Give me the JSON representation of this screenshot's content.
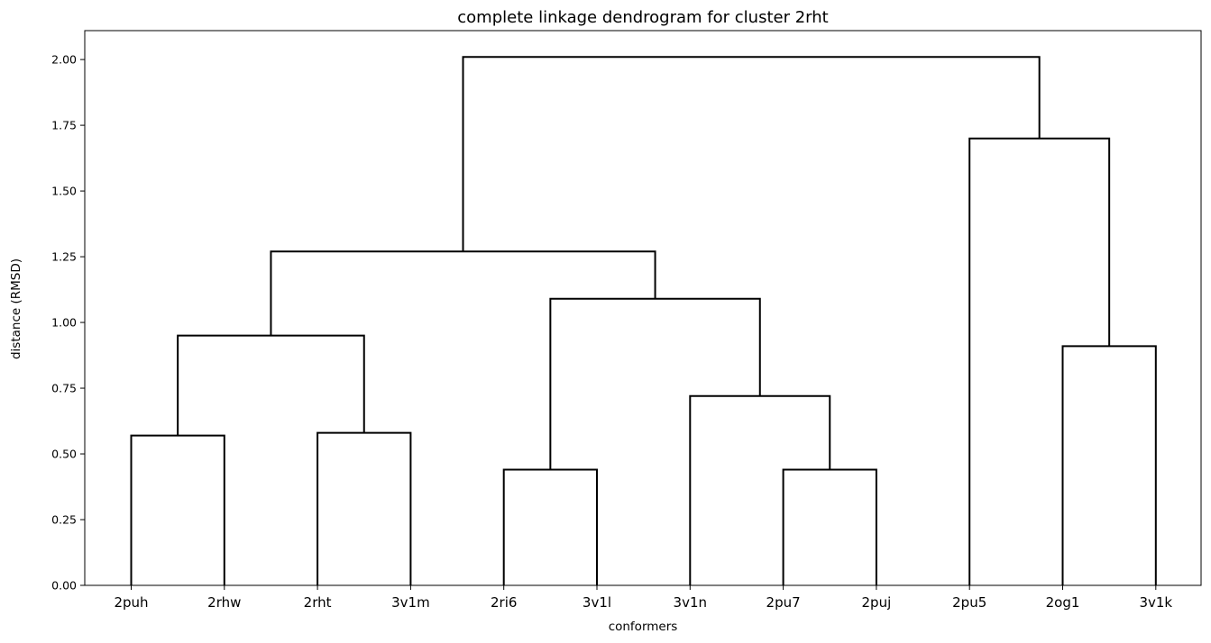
{
  "chart_data": {
    "type": "dendrogram",
    "title": "complete linkage dendrogram for cluster 2rht",
    "xlabel": "conformers",
    "ylabel": "distance (RMSD)",
    "ylim": [
      0,
      2.11
    ],
    "yticks": [
      "0.00",
      "0.25",
      "0.50",
      "0.75",
      "1.00",
      "1.25",
      "1.50",
      "1.75",
      "2.00"
    ],
    "leaves": [
      "2puh",
      "2rhw",
      "2rht",
      "3v1m",
      "2ri6",
      "3v1l",
      "3v1n",
      "2pu7",
      "2puj",
      "2pu5",
      "2og1",
      "3v1k"
    ],
    "merges": [
      {
        "left": "2puh",
        "right": "2rhw",
        "distance": 0.57
      },
      {
        "left": "2rht",
        "right": "3v1m",
        "distance": 0.58
      },
      {
        "left": "2ri6",
        "right": "3v1l",
        "distance": 0.44
      },
      {
        "left": "2pu7",
        "right": "2puj",
        "distance": 0.44
      },
      {
        "left": "3v1n",
        "right": "(2pu7,2puj)",
        "distance": 0.72
      },
      {
        "left": "2og1",
        "right": "3v1k",
        "distance": 0.91
      },
      {
        "left": "(2puh,2rhw)",
        "right": "(2rht,3v1m)",
        "distance": 0.95
      },
      {
        "left": "(2ri6,3v1l)",
        "right": "(3v1n,(2pu7,2puj))",
        "distance": 1.09
      },
      {
        "left": "((2puh,2rhw),(2rht,3v1m))",
        "right": "((2ri6,3v1l),(3v1n,(2pu7,2puj)))",
        "distance": 1.27
      },
      {
        "left": "2pu5",
        "right": "(2og1,3v1k)",
        "distance": 1.7
      },
      {
        "left": "left cluster",
        "right": "right cluster",
        "distance": 2.01
      }
    ],
    "links": [
      {
        "a": 0,
        "b": 1,
        "ya": 0,
        "yb": 0,
        "y": 0.57
      },
      {
        "a": 2,
        "b": 3,
        "ya": 0,
        "yb": 0,
        "y": 0.58
      },
      {
        "a": 4,
        "b": 5,
        "ya": 0,
        "yb": 0,
        "y": 0.44
      },
      {
        "a": 7,
        "b": 8,
        "ya": 0,
        "yb": 0,
        "y": 0.44
      },
      {
        "a": 6,
        "b": 7.5,
        "ya": 0,
        "yb": 0.44,
        "y": 0.72
      },
      {
        "a": 10,
        "b": 11,
        "ya": 0,
        "yb": 0,
        "y": 0.91
      },
      {
        "a": 0.5,
        "b": 2.5,
        "ya": 0.57,
        "yb": 0.58,
        "y": 0.95
      },
      {
        "a": 4.5,
        "b": 6.75,
        "ya": 0.44,
        "yb": 0.72,
        "y": 1.09
      },
      {
        "a": 1.5,
        "b": 5.625,
        "ya": 0.95,
        "yb": 1.09,
        "y": 1.27
      },
      {
        "a": 9,
        "b": 10.5,
        "ya": 0,
        "yb": 0.91,
        "y": 1.7
      },
      {
        "a": 3.5625,
        "b": 9.75,
        "ya": 1.27,
        "yb": 1.7,
        "y": 2.01
      }
    ]
  }
}
